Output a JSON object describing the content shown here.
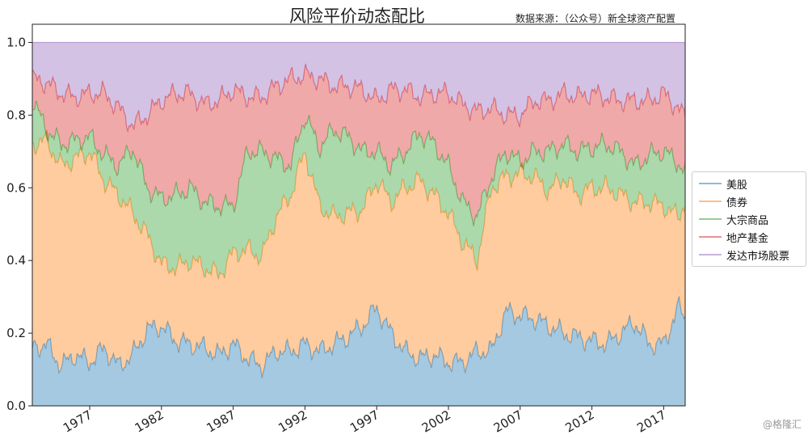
{
  "header": {
    "title": "风险平价动态配比",
    "source": "数据来源：（公众号）新全球资产配置"
  },
  "watermark": "@格隆汇",
  "chart_data": {
    "type": "area",
    "stacked": true,
    "x_start": 1973.0,
    "x_end": 2018.5,
    "xlim": [
      1973.0,
      2018.5
    ],
    "ylim": [
      0,
      1.05
    ],
    "x_ticks": [
      "1977",
      "1982",
      "1987",
      "1992",
      "1997",
      "2002",
      "2007",
      "2012",
      "2017"
    ],
    "y_ticks": [
      "0.0",
      "0.2",
      "0.4",
      "0.6",
      "0.8",
      "1.0"
    ],
    "grid": false,
    "legend_position": "right",
    "boundaries_x": [
      1973.0,
      1974.0,
      1975.0,
      1976.0,
      1977.0,
      1978.0,
      1979.0,
      1980.0,
      1981.0,
      1982.0,
      1983.0,
      1984.0,
      1985.0,
      1986.0,
      1987.0,
      1988.0,
      1989.0,
      1990.0,
      1991.0,
      1992.0,
      1993.0,
      1994.0,
      1995.0,
      1996.0,
      1997.0,
      1998.0,
      1999.0,
      2000.0,
      2001.0,
      2002.0,
      2003.0,
      2004.0,
      2005.0,
      2006.0,
      2007.0,
      2008.0,
      2009.0,
      2010.0,
      2011.0,
      2012.0,
      2013.0,
      2014.0,
      2015.0,
      2016.0,
      2017.0,
      2018.0,
      2018.5
    ],
    "series": [
      {
        "name": "美股",
        "color": "#1f77b4",
        "cumulative": [
          0.16,
          0.17,
          0.11,
          0.14,
          0.12,
          0.16,
          0.11,
          0.14,
          0.21,
          0.22,
          0.18,
          0.17,
          0.16,
          0.14,
          0.17,
          0.13,
          0.11,
          0.15,
          0.15,
          0.17,
          0.15,
          0.17,
          0.19,
          0.22,
          0.27,
          0.2,
          0.15,
          0.13,
          0.14,
          0.12,
          0.12,
          0.15,
          0.15,
          0.26,
          0.25,
          0.24,
          0.22,
          0.2,
          0.19,
          0.18,
          0.17,
          0.2,
          0.23,
          0.17,
          0.17,
          0.27,
          0.25
        ]
      },
      {
        "name": "债券",
        "color": "#ff7f0e",
        "cumulative": [
          0.72,
          0.73,
          0.66,
          0.68,
          0.7,
          0.62,
          0.58,
          0.53,
          0.47,
          0.39,
          0.38,
          0.4,
          0.38,
          0.36,
          0.42,
          0.43,
          0.41,
          0.52,
          0.58,
          0.7,
          0.55,
          0.52,
          0.53,
          0.54,
          0.62,
          0.56,
          0.6,
          0.62,
          0.58,
          0.53,
          0.45,
          0.4,
          0.6,
          0.63,
          0.64,
          0.63,
          0.59,
          0.63,
          0.58,
          0.6,
          0.6,
          0.58,
          0.56,
          0.56,
          0.55,
          0.52,
          0.56
        ]
      },
      {
        "name": "大宗商品",
        "color": "#2ca02c",
        "cumulative": [
          0.84,
          0.76,
          0.72,
          0.73,
          0.74,
          0.69,
          0.66,
          0.71,
          0.6,
          0.57,
          0.58,
          0.6,
          0.56,
          0.55,
          0.55,
          0.7,
          0.7,
          0.68,
          0.66,
          0.8,
          0.71,
          0.76,
          0.74,
          0.7,
          0.7,
          0.66,
          0.7,
          0.75,
          0.72,
          0.66,
          0.56,
          0.52,
          0.63,
          0.7,
          0.67,
          0.7,
          0.7,
          0.72,
          0.7,
          0.71,
          0.72,
          0.7,
          0.66,
          0.69,
          0.7,
          0.67,
          0.64
        ]
      },
      {
        "name": "地产基金",
        "color": "#d62728",
        "cumulative": [
          0.9,
          0.89,
          0.86,
          0.85,
          0.86,
          0.86,
          0.82,
          0.77,
          0.8,
          0.84,
          0.86,
          0.86,
          0.83,
          0.84,
          0.87,
          0.85,
          0.85,
          0.88,
          0.9,
          0.91,
          0.9,
          0.88,
          0.88,
          0.87,
          0.84,
          0.87,
          0.87,
          0.85,
          0.86,
          0.86,
          0.83,
          0.81,
          0.82,
          0.8,
          0.8,
          0.84,
          0.84,
          0.86,
          0.85,
          0.86,
          0.85,
          0.84,
          0.84,
          0.84,
          0.86,
          0.82,
          0.79
        ]
      },
      {
        "name": "发达市场股票",
        "color": "#9467bd",
        "cumulative": [
          1.0,
          1.0,
          1.0,
          1.0,
          1.0,
          1.0,
          1.0,
          1.0,
          1.0,
          1.0,
          1.0,
          1.0,
          1.0,
          1.0,
          1.0,
          1.0,
          1.0,
          1.0,
          1.0,
          1.0,
          1.0,
          1.0,
          1.0,
          1.0,
          1.0,
          1.0,
          1.0,
          1.0,
          1.0,
          1.0,
          1.0,
          1.0,
          1.0,
          1.0,
          1.0,
          1.0,
          1.0,
          1.0,
          1.0,
          1.0,
          1.0,
          1.0,
          1.0,
          1.0,
          1.0,
          1.0,
          1.0
        ]
      }
    ]
  }
}
